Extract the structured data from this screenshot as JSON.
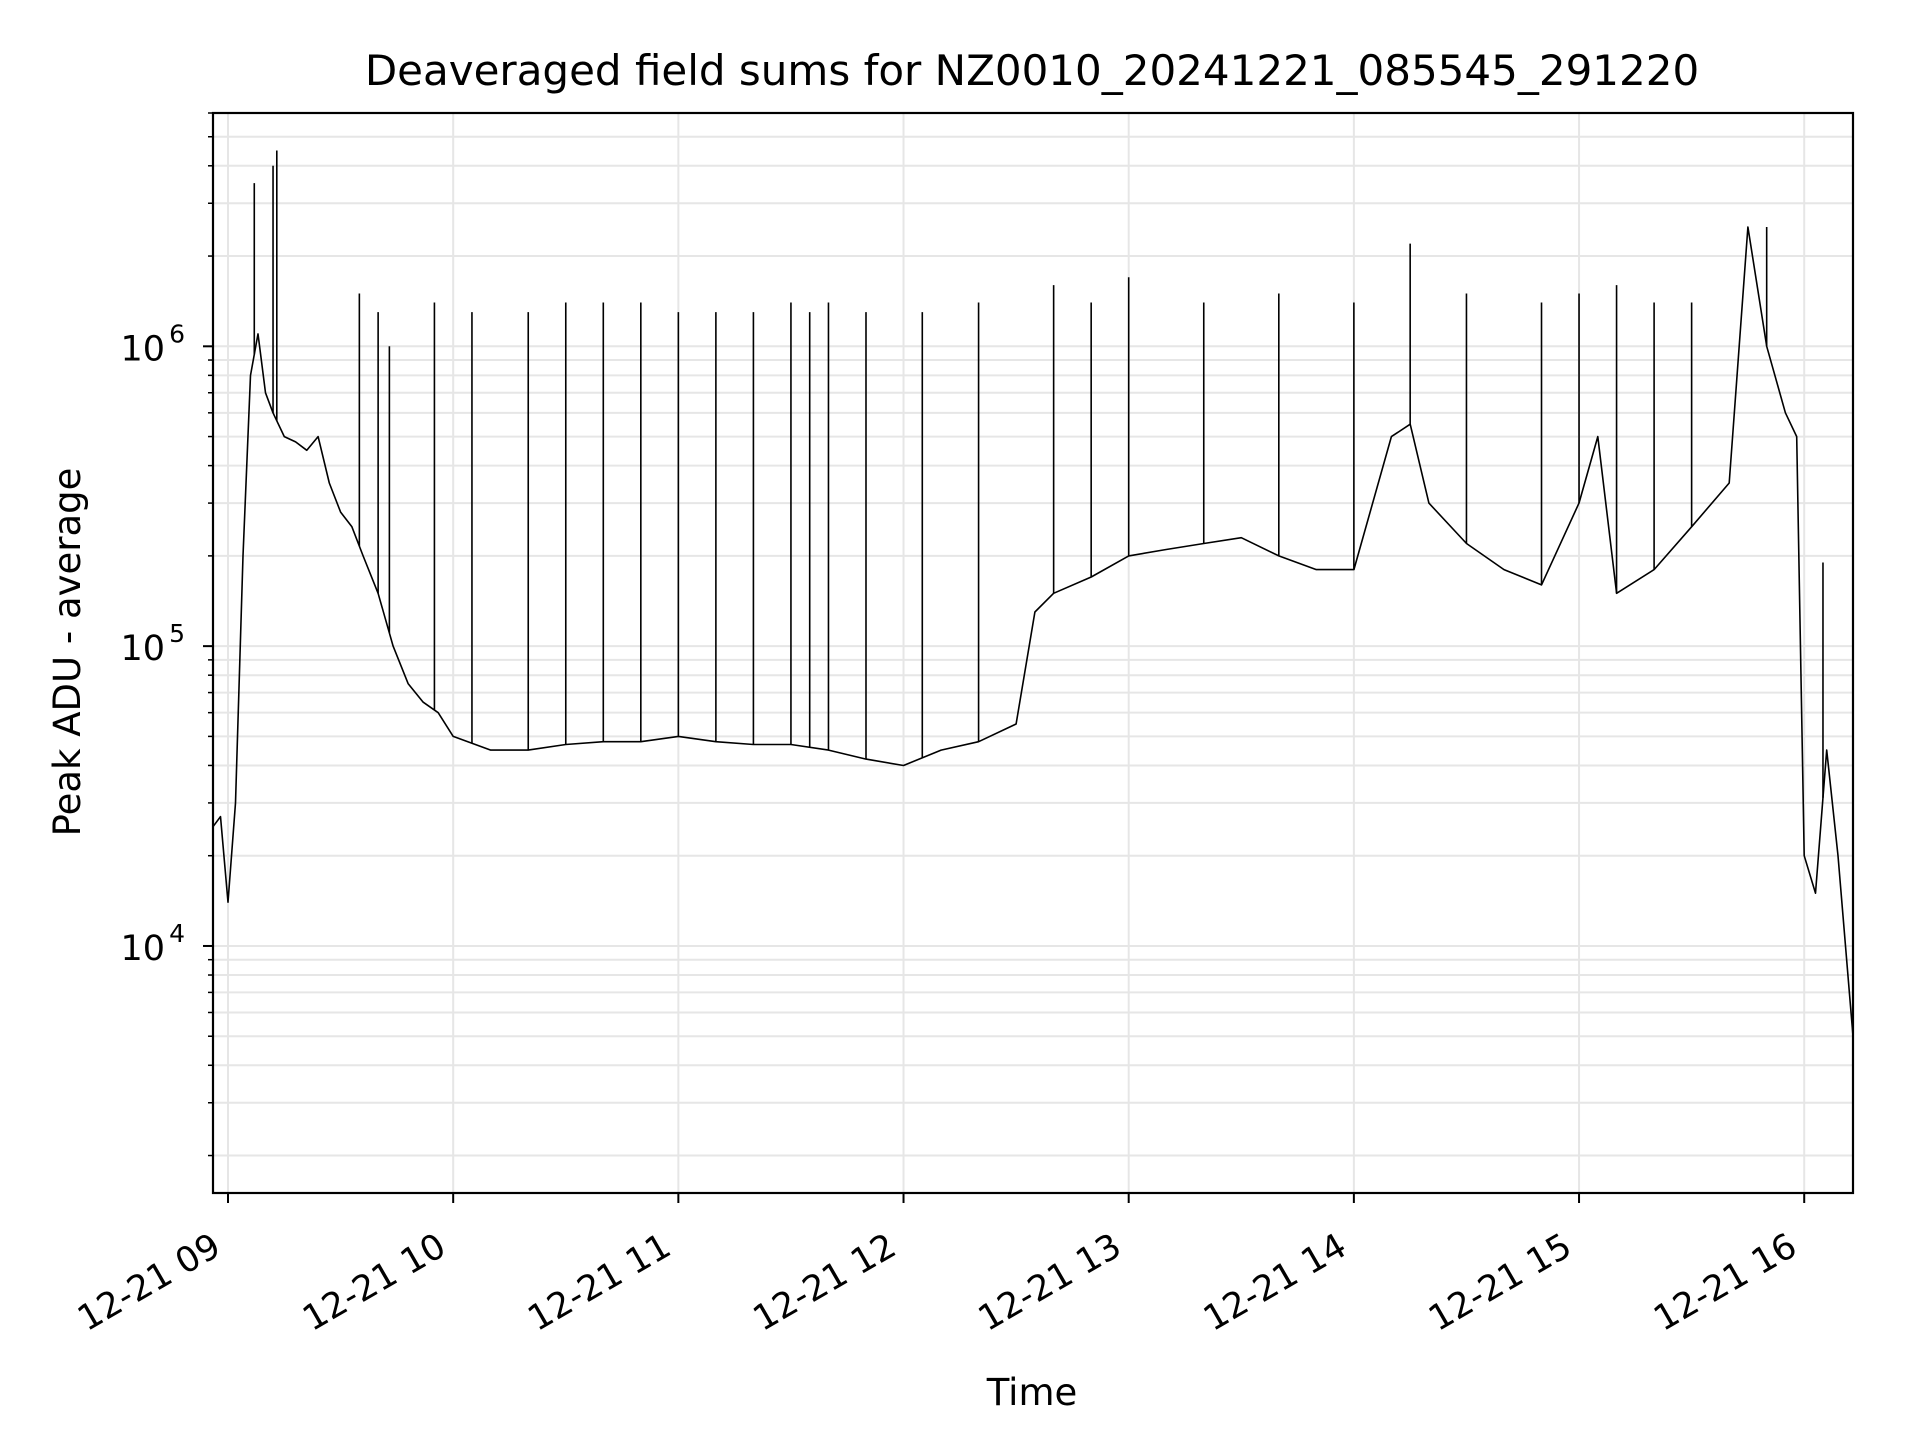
{
  "chart_data": {
    "type": "line",
    "title": "Deaveraged field sums for NZ0010_20241221_085545_291220",
    "xlabel": "Time",
    "ylabel": "Peak ADU - average",
    "yscale": "log",
    "ylim": [
      1500,
      6000000
    ],
    "xlim": [
      "2024-12-21 08:56",
      "2024-12-21 16:13"
    ],
    "grid": true,
    "x_ticks": [
      {
        "x": "2024-12-21 09:00",
        "label": "12-21 09"
      },
      {
        "x": "2024-12-21 10:00",
        "label": "12-21 10"
      },
      {
        "x": "2024-12-21 11:00",
        "label": "12-21 11"
      },
      {
        "x": "2024-12-21 12:00",
        "label": "12-21 12"
      },
      {
        "x": "2024-12-21 13:00",
        "label": "12-21 13"
      },
      {
        "x": "2024-12-21 14:00",
        "label": "12-21 14"
      },
      {
        "x": "2024-12-21 15:00",
        "label": "12-21 15"
      },
      {
        "x": "2024-12-21 16:00",
        "label": "12-21 16"
      }
    ],
    "y_ticks": [
      {
        "value": 10000,
        "base": "10",
        "exp": "4"
      },
      {
        "value": 100000,
        "base": "10",
        "exp": "5"
      },
      {
        "value": 1000000,
        "base": "10",
        "exp": "6"
      }
    ],
    "series": [
      {
        "color": "#000000",
        "x": [
          "2024-12-21 08:56",
          "2024-12-21 08:58",
          "2024-12-21 09:00",
          "2024-12-21 09:02",
          "2024-12-21 09:04",
          "2024-12-21 09:06",
          "2024-12-21 09:08",
          "2024-12-21 09:10",
          "2024-12-21 09:12",
          "2024-12-21 09:15",
          "2024-12-21 09:18",
          "2024-12-21 09:21",
          "2024-12-21 09:24",
          "2024-12-21 09:27",
          "2024-12-21 09:30",
          "2024-12-21 09:33",
          "2024-12-21 09:36",
          "2024-12-21 09:40",
          "2024-12-21 09:44",
          "2024-12-21 09:48",
          "2024-12-21 09:52",
          "2024-12-21 09:56",
          "2024-12-21 10:00",
          "2024-12-21 10:10",
          "2024-12-21 10:20",
          "2024-12-21 10:30",
          "2024-12-21 10:40",
          "2024-12-21 10:50",
          "2024-12-21 11:00",
          "2024-12-21 11:10",
          "2024-12-21 11:20",
          "2024-12-21 11:30",
          "2024-12-21 11:40",
          "2024-12-21 11:50",
          "2024-12-21 12:00",
          "2024-12-21 12:10",
          "2024-12-21 12:20",
          "2024-12-21 12:30",
          "2024-12-21 12:35",
          "2024-12-21 12:40",
          "2024-12-21 12:50",
          "2024-12-21 13:00",
          "2024-12-21 13:10",
          "2024-12-21 13:20",
          "2024-12-21 13:30",
          "2024-12-21 13:40",
          "2024-12-21 13:50",
          "2024-12-21 14:00",
          "2024-12-21 14:10",
          "2024-12-21 14:15",
          "2024-12-21 14:20",
          "2024-12-21 14:30",
          "2024-12-21 14:40",
          "2024-12-21 14:50",
          "2024-12-21 15:00",
          "2024-12-21 15:05",
          "2024-12-21 15:10",
          "2024-12-21 15:20",
          "2024-12-21 15:30",
          "2024-12-21 15:40",
          "2024-12-21 15:45",
          "2024-12-21 15:50",
          "2024-12-21 15:55",
          "2024-12-21 15:58",
          "2024-12-21 16:00",
          "2024-12-21 16:03",
          "2024-12-21 16:06",
          "2024-12-21 16:09",
          "2024-12-21 16:13"
        ],
        "values": [
          25000,
          27000,
          14000,
          30000,
          200000,
          800000,
          1100000,
          700000,
          600000,
          500000,
          480000,
          450000,
          500000,
          350000,
          280000,
          250000,
          200000,
          150000,
          100000,
          75000,
          65000,
          60000,
          50000,
          45000,
          45000,
          47000,
          48000,
          48000,
          50000,
          48000,
          47000,
          47000,
          45000,
          42000,
          40000,
          45000,
          48000,
          55000,
          130000,
          150000,
          170000,
          200000,
          210000,
          220000,
          230000,
          200000,
          180000,
          180000,
          500000,
          550000,
          300000,
          220000,
          180000,
          160000,
          300000,
          500000,
          150000,
          180000,
          250000,
          350000,
          2500000,
          1000000,
          600000,
          500000,
          20000,
          15000,
          45000,
          20000,
          5000
        ]
      }
    ],
    "spikes": {
      "x": [
        "2024-12-21 09:07",
        "2024-12-21 09:12",
        "2024-12-21 09:13",
        "2024-12-21 09:35",
        "2024-12-21 09:40",
        "2024-12-21 09:43",
        "2024-12-21 09:55",
        "2024-12-21 10:05",
        "2024-12-21 10:20",
        "2024-12-21 10:30",
        "2024-12-21 10:40",
        "2024-12-21 10:50",
        "2024-12-21 11:00",
        "2024-12-21 11:10",
        "2024-12-21 11:20",
        "2024-12-21 11:30",
        "2024-12-21 11:35",
        "2024-12-21 11:40",
        "2024-12-21 11:50",
        "2024-12-21 12:05",
        "2024-12-21 12:20",
        "2024-12-21 12:40",
        "2024-12-21 12:50",
        "2024-12-21 13:00",
        "2024-12-21 13:20",
        "2024-12-21 13:40",
        "2024-12-21 14:00",
        "2024-12-21 14:15",
        "2024-12-21 14:30",
        "2024-12-21 14:50",
        "2024-12-21 15:00",
        "2024-12-21 15:10",
        "2024-12-21 15:20",
        "2024-12-21 15:30",
        "2024-12-21 15:50",
        "2024-12-21 16:05"
      ],
      "values": [
        3500000,
        4000000,
        4500000,
        1500000,
        1300000,
        1000000,
        1400000,
        1300000,
        1300000,
        1400000,
        1400000,
        1400000,
        1300000,
        1300000,
        1300000,
        1400000,
        1300000,
        1400000,
        1300000,
        1300000,
        1400000,
        1600000,
        1400000,
        1700000,
        1400000,
        1500000,
        1400000,
        2200000,
        1500000,
        1400000,
        1500000,
        1600000,
        1400000,
        1400000,
        2500000,
        190000
      ]
    }
  }
}
